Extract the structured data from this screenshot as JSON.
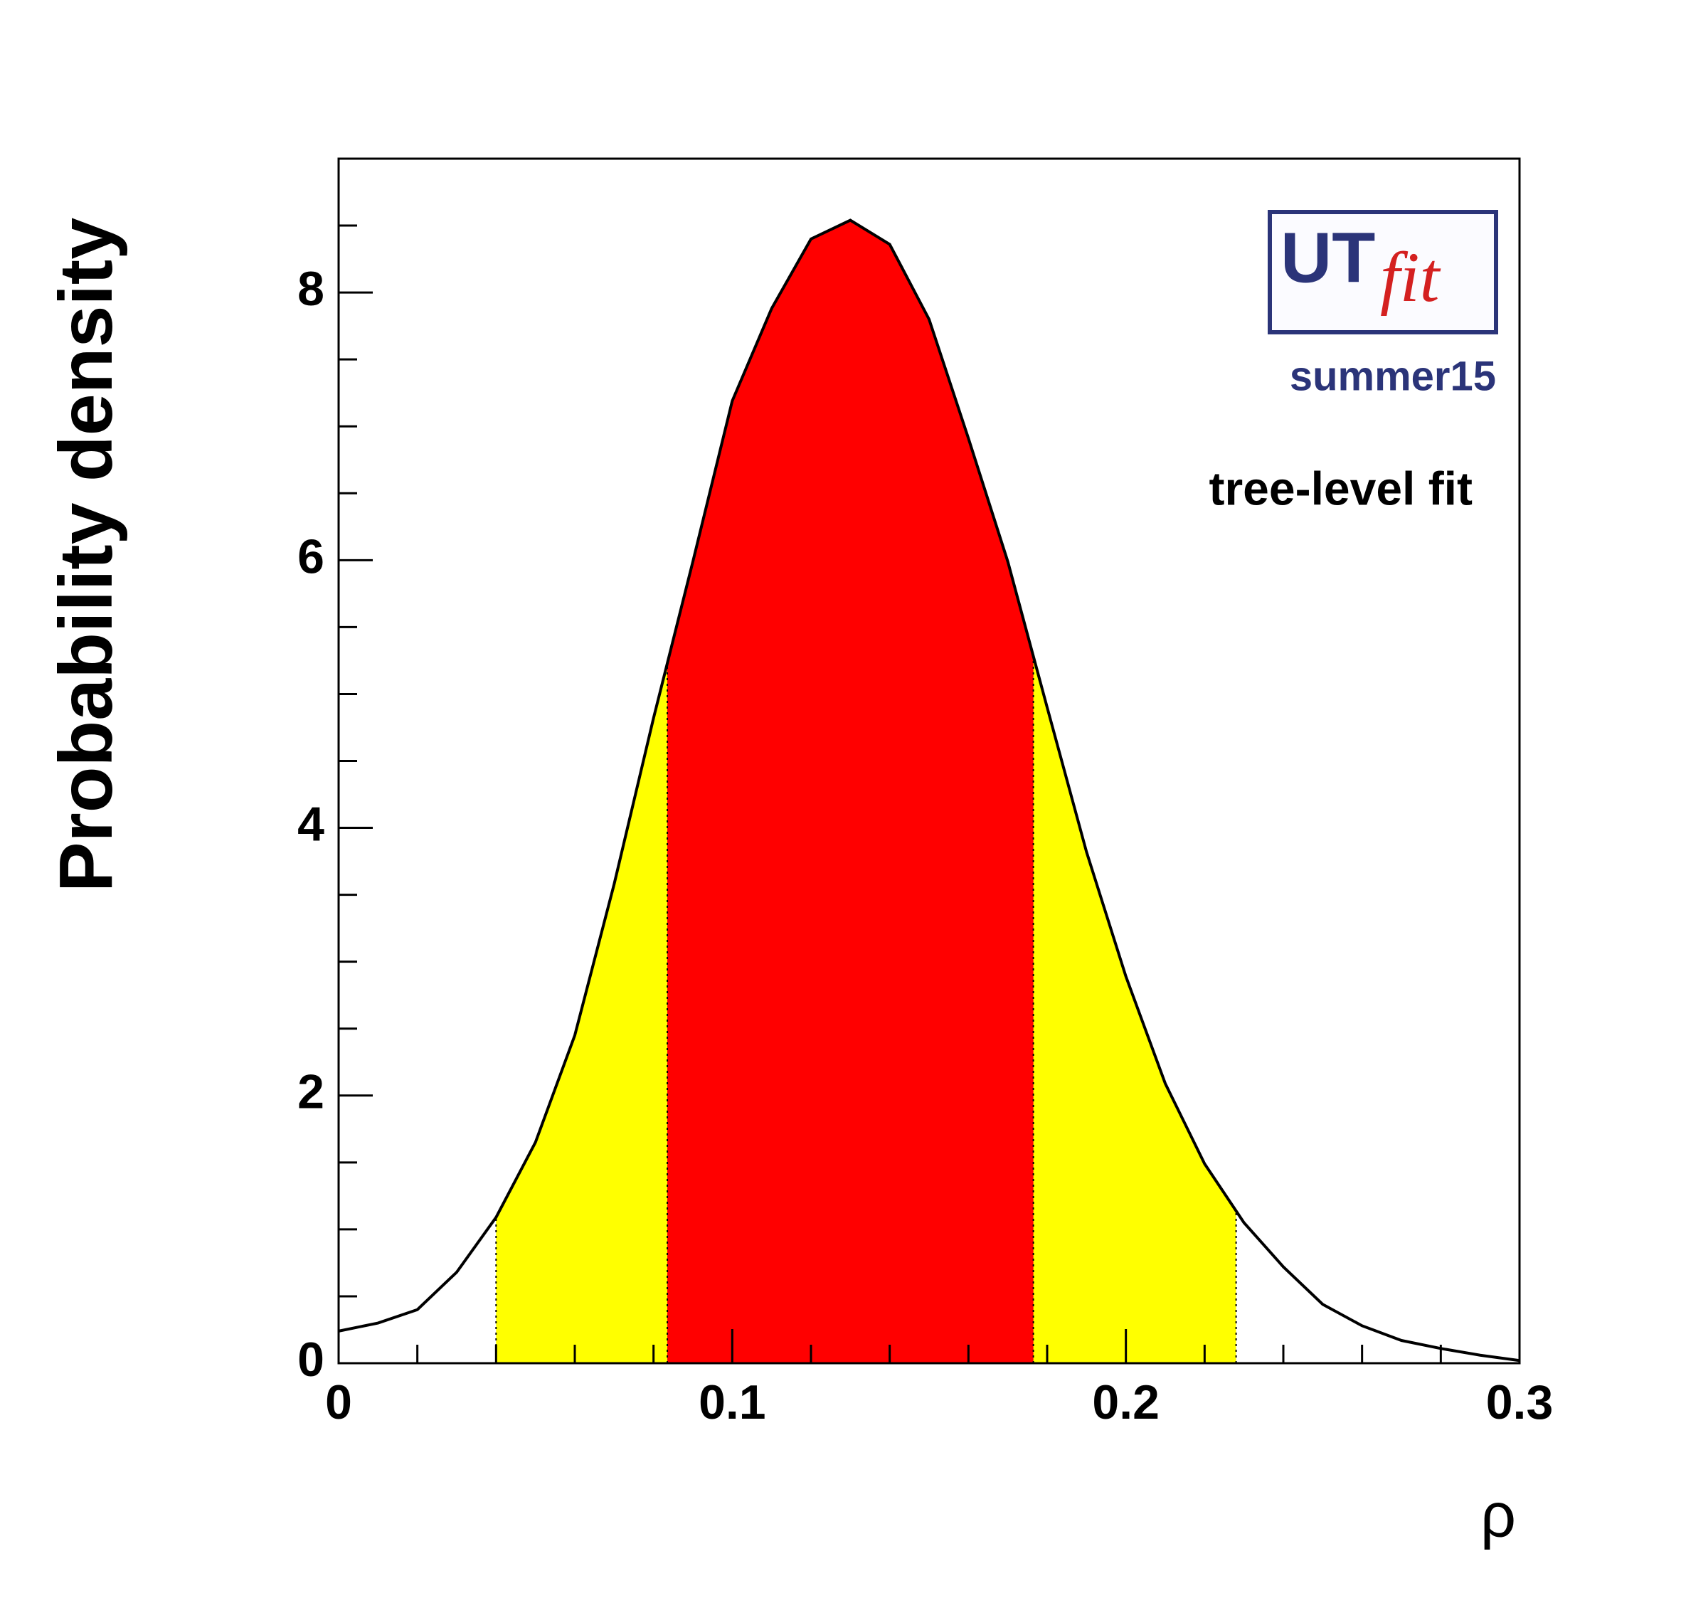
{
  "chart_data": {
    "type": "line",
    "xlabel": "ρ",
    "ylabel": "Probability density",
    "annotations": {
      "logo_main": "UT",
      "logo_sub": "fit",
      "edition": "summer15",
      "note": "tree-level fit"
    },
    "x": [
      0,
      0.01,
      0.02,
      0.03,
      0.04,
      0.05,
      0.06,
      0.07,
      0.08,
      0.09,
      0.1,
      0.11,
      0.12,
      0.13,
      0.14,
      0.15,
      0.16,
      0.17,
      0.18,
      0.19,
      0.2,
      0.21,
      0.22,
      0.23,
      0.24,
      0.25,
      0.26,
      0.27,
      0.28,
      0.29,
      0.3
    ],
    "series": [
      {
        "color": "#000000",
        "values": [
          0.24,
          0.3,
          0.4,
          0.68,
          1.09,
          1.65,
          2.45,
          3.58,
          4.82,
          5.99,
          7.19,
          7.88,
          8.4,
          8.54,
          8.36,
          7.8,
          6.91,
          5.99,
          4.9,
          3.82,
          2.89,
          2.09,
          1.49,
          1.05,
          0.72,
          0.44,
          0.28,
          0.17,
          0.11,
          0.06,
          0.02
        ]
      }
    ],
    "bands": [
      {
        "color": "#ffff00",
        "range": [
          0.04,
          0.228
        ]
      },
      {
        "color": "#ff0000",
        "range": [
          0.0835,
          0.1765
        ]
      }
    ],
    "xlim": [
      0,
      0.3
    ],
    "ylim": [
      0,
      9
    ],
    "xticks": [
      0,
      0.1,
      0.2,
      0.3
    ],
    "yticks": [
      0,
      2,
      4,
      6,
      8
    ],
    "xminorticks": [
      0.02,
      0.04,
      0.06,
      0.08,
      0.12,
      0.14,
      0.16,
      0.18,
      0.22,
      0.24,
      0.26,
      0.28
    ],
    "yminorticks": [
      0.5,
      1,
      1.5,
      2.5,
      3,
      3.5,
      4.5,
      5,
      5.5,
      6.5,
      7,
      7.5,
      8.5
    ]
  }
}
